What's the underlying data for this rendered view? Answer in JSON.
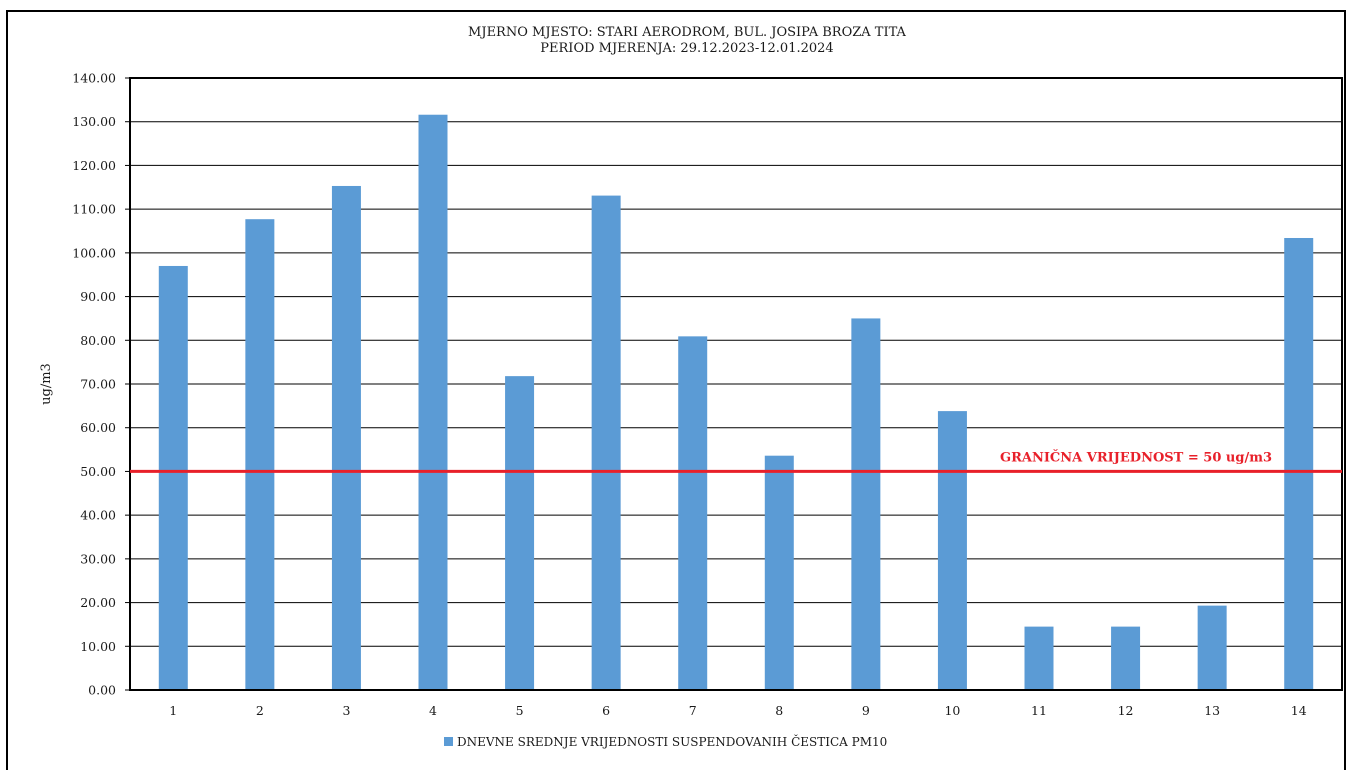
{
  "chart_data": {
    "type": "bar",
    "title": "MJERNO MJESTO: STARI AERODROM, BUL. JOSIPA BROZA TITA",
    "subtitle": "PERIOD MJERENJA:  29.12.2023-12.01.2024",
    "xlabel": "",
    "ylabel": "ug/m3",
    "ylim": [
      0,
      140
    ],
    "yticks": [
      "0.00",
      "10.00",
      "20.00",
      "30.00",
      "40.00",
      "50.00",
      "60.00",
      "70.00",
      "80.00",
      "90.00",
      "100.00",
      "110.00",
      "120.00",
      "130.00",
      "140.00"
    ],
    "categories": [
      "1",
      "2",
      "3",
      "4",
      "5",
      "6",
      "7",
      "8",
      "9",
      "10",
      "11",
      "12",
      "13",
      "14"
    ],
    "series": [
      {
        "name": "DNEVNE SREDNJE VRIJEDNOSTI SUSPENDOVANIH ČESTICA PM10",
        "values": [
          97.0,
          107.7,
          115.3,
          131.6,
          71.8,
          113.1,
          80.9,
          53.6,
          85.0,
          63.8,
          14.5,
          14.5,
          19.3,
          103.4
        ],
        "color": "#5b9bd5"
      }
    ],
    "reference_line": {
      "value": 50,
      "label": "GRANIČNA VRIJEDNOST = 50 ug/m3",
      "color": "#e8202a"
    },
    "grid": true,
    "legend_position": "bottom-center"
  }
}
